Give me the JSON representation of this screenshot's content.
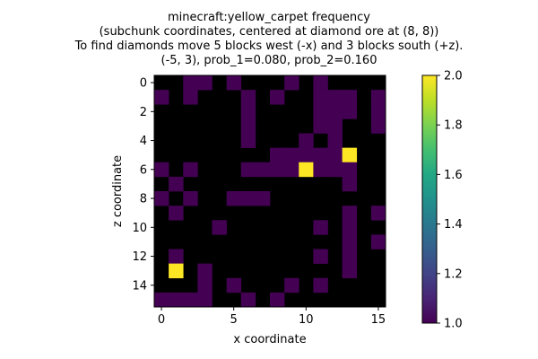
{
  "chart_data": {
    "type": "heatmap",
    "title_lines": [
      "minecraft:yellow_carpet frequency",
      "(subchunk coordinates, centered at diamond ore at (8, 8))",
      "To find diamonds move 5 blocks west (-x) and 3 blocks south (+z).",
      "(-5, 3), prob_1=0.080, prob_2=0.160"
    ],
    "xlabel": "x coordinate",
    "ylabel": "z coordinate",
    "x_ticks": [
      0,
      5,
      10,
      15
    ],
    "y_ticks": [
      0,
      2,
      4,
      6,
      8,
      10,
      12,
      14
    ],
    "colorbar": {
      "min": 1.0,
      "max": 2.0,
      "ticks": [
        "1.0",
        "1.2",
        "1.4",
        "1.6",
        "1.8",
        "2.0"
      ],
      "colormap": "viridis"
    },
    "background_color": "#000000",
    "grid": [
      [
        0,
        0,
        1,
        1,
        0,
        1,
        0,
        0,
        0,
        1,
        0,
        1,
        0,
        0,
        0,
        0
      ],
      [
        1,
        0,
        1,
        0,
        0,
        0,
        1,
        0,
        1,
        0,
        0,
        1,
        1,
        1,
        0,
        1
      ],
      [
        0,
        0,
        0,
        0,
        0,
        0,
        1,
        0,
        0,
        0,
        0,
        1,
        1,
        1,
        0,
        1
      ],
      [
        0,
        0,
        0,
        0,
        0,
        0,
        1,
        0,
        0,
        0,
        0,
        1,
        1,
        0,
        0,
        1
      ],
      [
        0,
        0,
        0,
        0,
        0,
        0,
        1,
        0,
        0,
        0,
        1,
        0,
        1,
        0,
        0,
        0
      ],
      [
        0,
        0,
        0,
        0,
        0,
        0,
        0,
        0,
        1,
        1,
        1,
        1,
        1,
        2,
        0,
        0
      ],
      [
        1,
        0,
        1,
        0,
        0,
        0,
        1,
        1,
        1,
        1,
        2,
        1,
        1,
        1,
        0,
        0
      ],
      [
        0,
        1,
        0,
        0,
        0,
        0,
        0,
        0,
        0,
        0,
        0,
        0,
        0,
        1,
        0,
        0
      ],
      [
        1,
        0,
        1,
        0,
        0,
        1,
        1,
        1,
        0,
        0,
        0,
        0,
        0,
        0,
        0,
        0
      ],
      [
        0,
        1,
        0,
        0,
        0,
        0,
        0,
        0,
        0,
        0,
        0,
        0,
        0,
        1,
        0,
        1
      ],
      [
        0,
        0,
        0,
        0,
        1,
        0,
        0,
        0,
        0,
        0,
        0,
        1,
        0,
        1,
        0,
        0
      ],
      [
        0,
        0,
        0,
        0,
        0,
        0,
        0,
        0,
        0,
        0,
        0,
        0,
        0,
        1,
        0,
        1
      ],
      [
        0,
        1,
        0,
        0,
        0,
        0,
        0,
        0,
        0,
        0,
        0,
        1,
        0,
        1,
        0,
        0
      ],
      [
        0,
        2,
        0,
        1,
        0,
        0,
        0,
        0,
        0,
        0,
        0,
        0,
        0,
        1,
        0,
        0
      ],
      [
        0,
        0,
        0,
        1,
        0,
        1,
        0,
        0,
        0,
        1,
        0,
        1,
        0,
        0,
        0,
        0
      ],
      [
        1,
        1,
        1,
        1,
        0,
        0,
        1,
        0,
        1,
        0,
        0,
        0,
        0,
        0,
        0,
        0
      ]
    ]
  }
}
